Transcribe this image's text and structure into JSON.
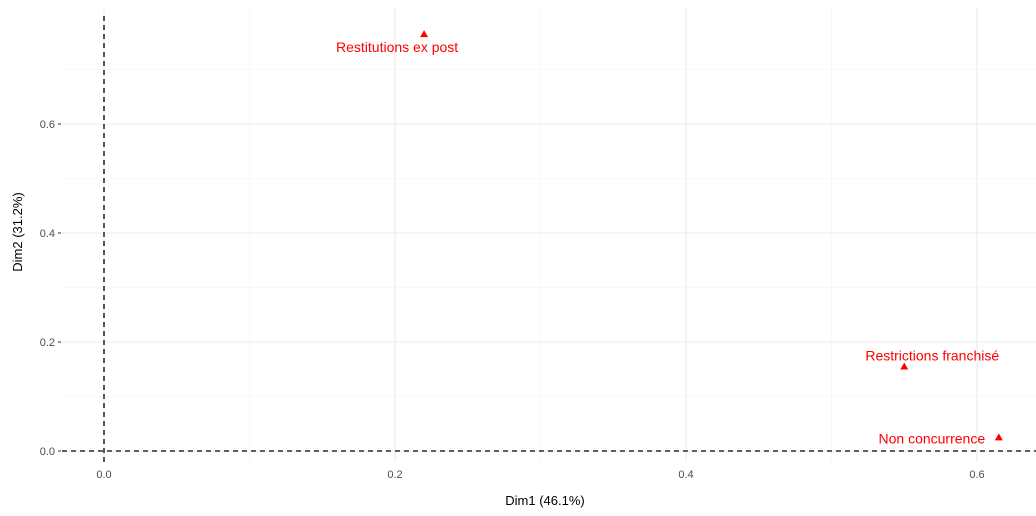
{
  "chart_data": {
    "type": "scatter",
    "title": "",
    "xlabel": "Dim1 (46.1%)",
    "ylabel": "Dim2 (31.2%)",
    "xlim": [
      -0.03,
      0.63
    ],
    "ylim": [
      -0.015,
      0.805
    ],
    "x_ticks": [
      0.0,
      0.2,
      0.4,
      0.6
    ],
    "x_tick_labels": [
      "0.0",
      "0.2",
      "0.4",
      "0.6"
    ],
    "y_ticks": [
      0.0,
      0.2,
      0.4,
      0.6
    ],
    "y_tick_labels": [
      "0.0",
      "0.2",
      "0.4",
      "0.6"
    ],
    "grid": true,
    "reference_lines": {
      "x": 0,
      "y": 0,
      "style": "dashed"
    },
    "marker": "triangle",
    "point_color": "#ff0000",
    "points": [
      {
        "label": "Restitutions ex post",
        "x": 0.22,
        "y": 0.765
      },
      {
        "label": "Restrictions franchisé",
        "x": 0.55,
        "y": 0.155
      },
      {
        "label": "Non concurrence",
        "x": 0.615,
        "y": 0.025
      }
    ]
  }
}
